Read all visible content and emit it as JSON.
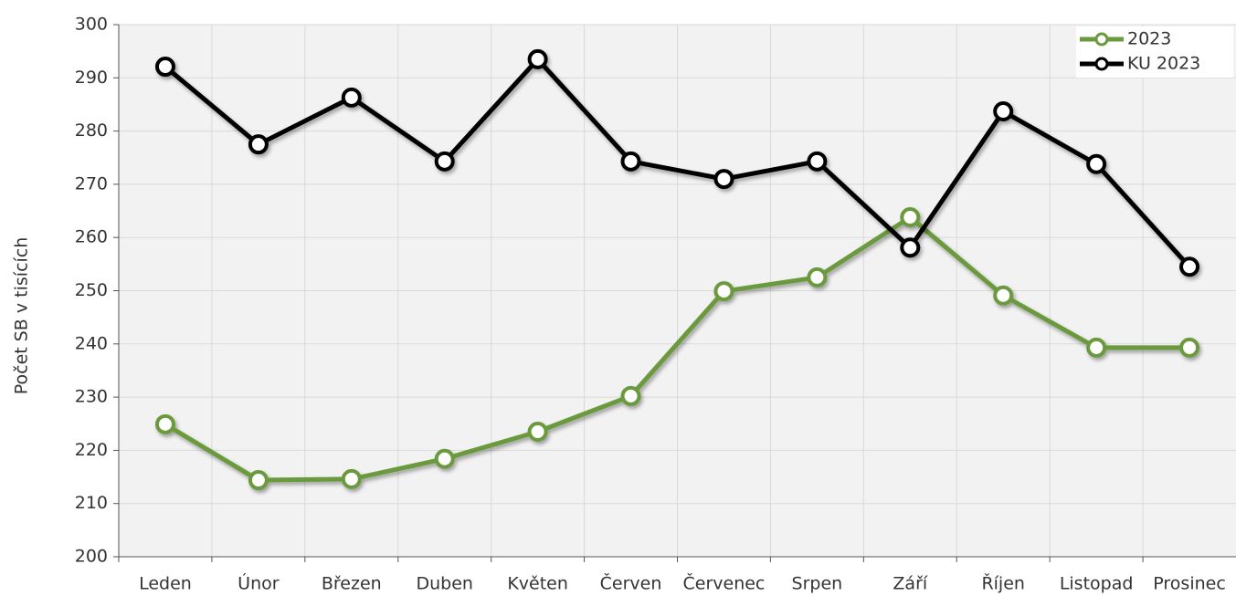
{
  "chart_data": {
    "type": "line",
    "y_label": "Počet SB v tisících",
    "categories": [
      "Leden",
      "Únor",
      "Březen",
      "Duben",
      "Květen",
      "Červen",
      "Červenec",
      "Srpen",
      "Září",
      "Říjen",
      "Listopad",
      "Prosinec"
    ],
    "series": [
      {
        "name": "2023",
        "color": "#6a9a3c",
        "values": [
          224.9,
          214.4,
          214.6,
          218.4,
          223.5,
          230.2,
          249.9,
          252.5,
          263.8,
          249.1,
          239.3,
          239.3
        ]
      },
      {
        "name": "KU 2023",
        "color": "#000000",
        "values": [
          292.1,
          277.5,
          286.3,
          274.3,
          293.5,
          274.3,
          271.0,
          274.3,
          258.1,
          283.7,
          273.8,
          254.5
        ]
      }
    ],
    "ylim": [
      200,
      300
    ],
    "yticks": [
      200,
      210,
      220,
      230,
      240,
      250,
      260,
      270,
      280,
      290,
      300
    ],
    "grid": true,
    "legend": "top-right"
  }
}
